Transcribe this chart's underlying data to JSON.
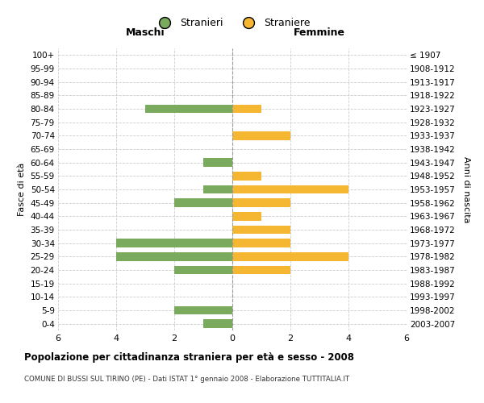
{
  "age_groups": [
    "0-4",
    "5-9",
    "10-14",
    "15-19",
    "20-24",
    "25-29",
    "30-34",
    "35-39",
    "40-44",
    "45-49",
    "50-54",
    "55-59",
    "60-64",
    "65-69",
    "70-74",
    "75-79",
    "80-84",
    "85-89",
    "90-94",
    "95-99",
    "100+"
  ],
  "birth_years": [
    "2003-2007",
    "1998-2002",
    "1993-1997",
    "1988-1992",
    "1983-1987",
    "1978-1982",
    "1973-1977",
    "1968-1972",
    "1963-1967",
    "1958-1962",
    "1953-1957",
    "1948-1952",
    "1943-1947",
    "1938-1942",
    "1933-1937",
    "1928-1932",
    "1923-1927",
    "1918-1922",
    "1913-1917",
    "1908-1912",
    "≤ 1907"
  ],
  "maschi": [
    1,
    2,
    0,
    0,
    2,
    4,
    4,
    0,
    0,
    2,
    1,
    0,
    1,
    0,
    0,
    0,
    3,
    0,
    0,
    0,
    0
  ],
  "femmine": [
    0,
    0,
    0,
    0,
    2,
    4,
    2,
    2,
    1,
    2,
    4,
    1,
    0,
    0,
    2,
    0,
    1,
    0,
    0,
    0,
    0
  ],
  "color_maschi": "#7aaa5e",
  "color_femmine": "#f5b731",
  "title": "Popolazione per cittadinanza straniera per età e sesso - 2008",
  "subtitle": "COMUNE DI BUSSI SUL TIRINO (PE) - Dati ISTAT 1° gennaio 2008 - Elaborazione TUTTITALIA.IT",
  "xlabel_left": "Maschi",
  "xlabel_right": "Femmine",
  "ylabel_left": "Fasce di età",
  "ylabel_right": "Anni di nascita",
  "legend_maschi": "Stranieri",
  "legend_femmine": "Straniere",
  "xlim": 6,
  "background_color": "#ffffff",
  "grid_color": "#cccccc"
}
